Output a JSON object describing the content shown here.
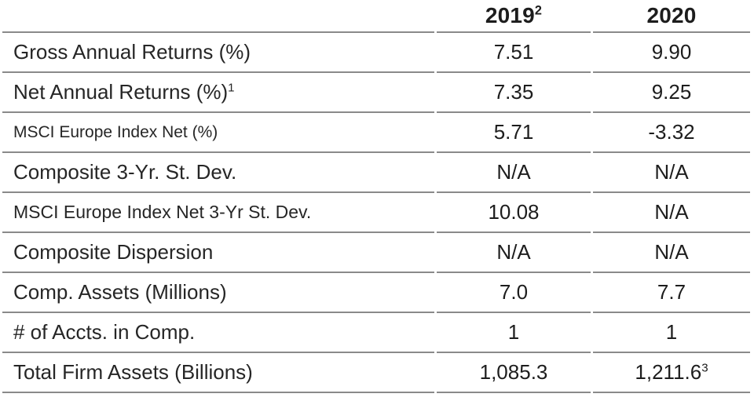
{
  "chart_data": {
    "type": "table",
    "title": "",
    "columns": [
      "",
      "2019²",
      "2020"
    ],
    "rows": [
      [
        "Gross Annual Returns (%)",
        "7.51",
        "9.90"
      ],
      [
        "Net Annual Returns (%)¹",
        "7.35",
        "9.25"
      ],
      [
        "MSCI Europe Index Net (%)",
        "5.71",
        "-3.32"
      ],
      [
        "Composite 3-Yr. St. Dev.",
        "N/A",
        "N/A"
      ],
      [
        "MSCI Europe Index Net 3-Yr St. Dev.",
        "10.08",
        "N/A"
      ],
      [
        "Composite Dispersion",
        "N/A",
        "N/A"
      ],
      [
        "Comp. Assets (Millions)",
        "7.0",
        "7.7"
      ],
      [
        "# of Accts. in Comp.",
        "1",
        "1"
      ],
      [
        "Total Firm Assets (Billions)",
        "1,085.3",
        "1,211.6³"
      ]
    ],
    "layout": {
      "grid": "horizontal-rules-only",
      "value_align": "center",
      "label_align": "left"
    }
  },
  "colors": {
    "rule": "#8a8a8a",
    "text": "#1d1d1d",
    "background": "#ffffff"
  },
  "table": {
    "header": {
      "col1": {
        "text": "2019",
        "sup": "2"
      },
      "col2": {
        "text": "2020",
        "sup": ""
      }
    },
    "rows": [
      {
        "label": "Gross Annual Returns (%)",
        "label_sup": "",
        "values": [
          {
            "text": "7.51",
            "sup": ""
          },
          {
            "text": "9.90",
            "sup": ""
          }
        ]
      },
      {
        "label": "Net Annual Returns (%)",
        "label_sup": "1",
        "values": [
          {
            "text": "7.35",
            "sup": ""
          },
          {
            "text": "9.25",
            "sup": ""
          }
        ]
      },
      {
        "label": "MSCI Europe Index Net (%)",
        "label_sup": "",
        "values": [
          {
            "text": "5.71",
            "sup": ""
          },
          {
            "text": "-3.32",
            "sup": ""
          }
        ]
      },
      {
        "label": "Composite 3-Yr. St. Dev.",
        "label_sup": "",
        "values": [
          {
            "text": "N/A",
            "sup": ""
          },
          {
            "text": "N/A",
            "sup": ""
          }
        ]
      },
      {
        "label": "MSCI Europe Index Net 3-Yr St. Dev.",
        "label_sup": "",
        "values": [
          {
            "text": "10.08",
            "sup": ""
          },
          {
            "text": "N/A",
            "sup": ""
          }
        ]
      },
      {
        "label": "Composite Dispersion",
        "label_sup": "",
        "values": [
          {
            "text": "N/A",
            "sup": ""
          },
          {
            "text": "N/A",
            "sup": ""
          }
        ]
      },
      {
        "label": "Comp. Assets (Millions)",
        "label_sup": "",
        "values": [
          {
            "text": "7.0",
            "sup": ""
          },
          {
            "text": "7.7",
            "sup": ""
          }
        ]
      },
      {
        "label": "# of Accts. in Comp.",
        "label_sup": "",
        "values": [
          {
            "text": "1",
            "sup": ""
          },
          {
            "text": "1",
            "sup": ""
          }
        ]
      },
      {
        "label": "Total Firm Assets (Billions)",
        "label_sup": "",
        "values": [
          {
            "text": "1,085.3",
            "sup": ""
          },
          {
            "text": "1,211.6",
            "sup": "3"
          }
        ]
      }
    ]
  }
}
